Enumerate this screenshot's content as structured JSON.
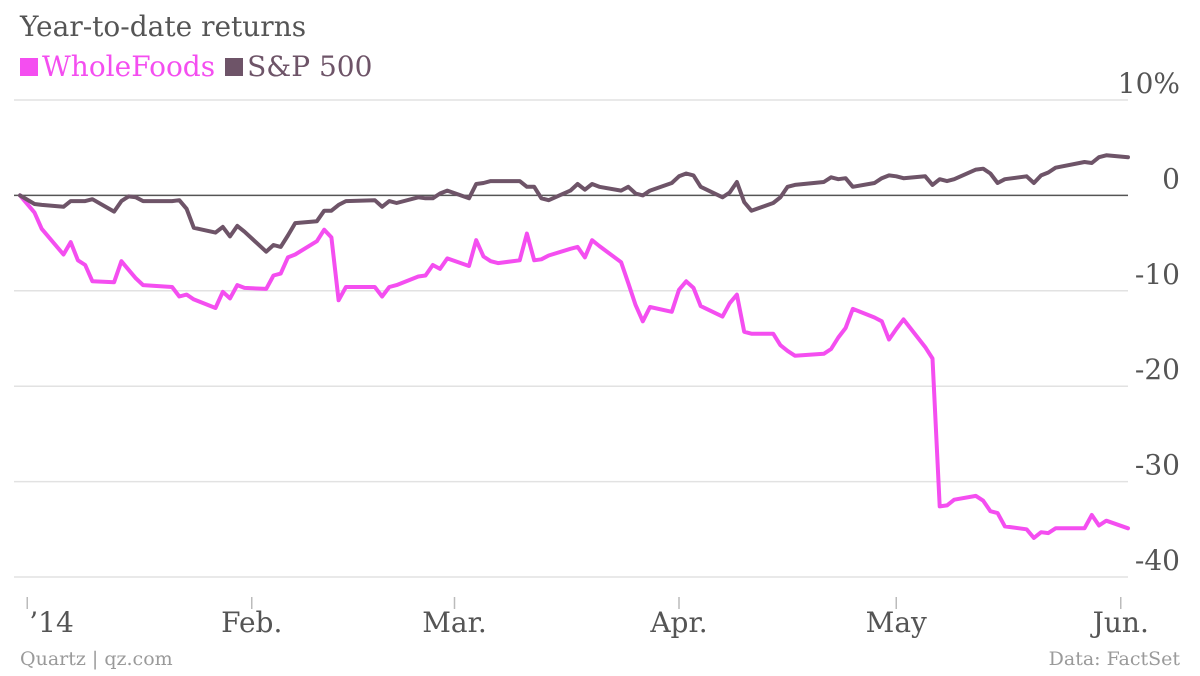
{
  "chart_data": {
    "type": "line",
    "title": "Year-to-date returns",
    "xlabel": "",
    "ylabel": "",
    "ylim": [
      -40,
      10
    ],
    "yticks": [
      10,
      0,
      -10,
      -20,
      -30,
      -40
    ],
    "ytick_labels": [
      "10%",
      "0",
      "-10",
      "-20",
      "-30",
      "-40"
    ],
    "x_axis": {
      "start": "2013-12-31",
      "end": "2014-06-02",
      "ticks": [
        {
          "date": "2014-01-01",
          "label": "’14"
        },
        {
          "date": "2014-02-01",
          "label": "Feb."
        },
        {
          "date": "2014-03-01",
          "label": "Mar."
        },
        {
          "date": "2014-04-01",
          "label": "Apr."
        },
        {
          "date": "2014-05-01",
          "label": "May"
        },
        {
          "date": "2014-06-01",
          "label": "Jun."
        }
      ]
    },
    "legend_position": "top-left",
    "grid": true,
    "series": [
      {
        "name": "WholeFoods",
        "color": "#f44ef0",
        "points": [
          [
            "2013-12-31",
            0.0
          ],
          [
            "2014-01-02",
            -1.8
          ],
          [
            "2014-01-03",
            -3.5
          ],
          [
            "2014-01-06",
            -6.2
          ],
          [
            "2014-01-07",
            -4.9
          ],
          [
            "2014-01-08",
            -6.8
          ],
          [
            "2014-01-09",
            -7.3
          ],
          [
            "2014-01-10",
            -9.0
          ],
          [
            "2014-01-13",
            -9.1
          ],
          [
            "2014-01-14",
            -6.9
          ],
          [
            "2014-01-15",
            -7.8
          ],
          [
            "2014-01-16",
            -8.7
          ],
          [
            "2014-01-17",
            -9.4
          ],
          [
            "2014-01-21",
            -9.6
          ],
          [
            "2014-01-22",
            -10.6
          ],
          [
            "2014-01-23",
            -10.4
          ],
          [
            "2014-01-24",
            -10.9
          ],
          [
            "2014-01-27",
            -11.8
          ],
          [
            "2014-01-28",
            -10.1
          ],
          [
            "2014-01-29",
            -10.8
          ],
          [
            "2014-01-30",
            -9.4
          ],
          [
            "2014-01-31",
            -9.7
          ],
          [
            "2014-02-03",
            -9.8
          ],
          [
            "2014-02-04",
            -8.4
          ],
          [
            "2014-02-05",
            -8.2
          ],
          [
            "2014-02-06",
            -6.5
          ],
          [
            "2014-02-07",
            -6.2
          ],
          [
            "2014-02-10",
            -4.8
          ],
          [
            "2014-02-11",
            -3.6
          ],
          [
            "2014-02-12",
            -4.4
          ],
          [
            "2014-02-13",
            -11.0
          ],
          [
            "2014-02-14",
            -9.6
          ],
          [
            "2014-02-18",
            -9.6
          ],
          [
            "2014-02-19",
            -10.6
          ],
          [
            "2014-02-20",
            -9.6
          ],
          [
            "2014-02-21",
            -9.4
          ],
          [
            "2014-02-24",
            -8.5
          ],
          [
            "2014-02-25",
            -8.4
          ],
          [
            "2014-02-26",
            -7.3
          ],
          [
            "2014-02-27",
            -7.7
          ],
          [
            "2014-02-28",
            -6.6
          ],
          [
            "2014-03-03",
            -7.4
          ],
          [
            "2014-03-04",
            -4.7
          ],
          [
            "2014-03-05",
            -6.4
          ],
          [
            "2014-03-06",
            -6.9
          ],
          [
            "2014-03-07",
            -7.1
          ],
          [
            "2014-03-10",
            -6.8
          ],
          [
            "2014-03-11",
            -4.0
          ],
          [
            "2014-03-12",
            -6.8
          ],
          [
            "2014-03-13",
            -6.7
          ],
          [
            "2014-03-14",
            -6.3
          ],
          [
            "2014-03-17",
            -5.6
          ],
          [
            "2014-03-18",
            -5.4
          ],
          [
            "2014-03-19",
            -6.5
          ],
          [
            "2014-03-20",
            -4.7
          ],
          [
            "2014-03-21",
            -5.3
          ],
          [
            "2014-03-24",
            -7.0
          ],
          [
            "2014-03-25",
            -9.2
          ],
          [
            "2014-03-26",
            -11.5
          ],
          [
            "2014-03-27",
            -13.2
          ],
          [
            "2014-03-28",
            -11.7
          ],
          [
            "2014-03-31",
            -12.2
          ],
          [
            "2014-04-01",
            -9.9
          ],
          [
            "2014-04-02",
            -9.0
          ],
          [
            "2014-04-03",
            -9.7
          ],
          [
            "2014-04-04",
            -11.6
          ],
          [
            "2014-04-07",
            -12.7
          ],
          [
            "2014-04-08",
            -11.3
          ],
          [
            "2014-04-09",
            -10.4
          ],
          [
            "2014-04-10",
            -14.3
          ],
          [
            "2014-04-11",
            -14.5
          ],
          [
            "2014-04-14",
            -14.5
          ],
          [
            "2014-04-15",
            -15.7
          ],
          [
            "2014-04-16",
            -16.3
          ],
          [
            "2014-04-17",
            -16.8
          ],
          [
            "2014-04-21",
            -16.6
          ],
          [
            "2014-04-22",
            -16.1
          ],
          [
            "2014-04-23",
            -14.9
          ],
          [
            "2014-04-24",
            -13.9
          ],
          [
            "2014-04-25",
            -11.9
          ],
          [
            "2014-04-28",
            -12.8
          ],
          [
            "2014-04-29",
            -13.2
          ],
          [
            "2014-04-30",
            -15.1
          ],
          [
            "2014-05-01",
            -14.0
          ],
          [
            "2014-05-02",
            -13.0
          ],
          [
            "2014-05-05",
            -15.9
          ],
          [
            "2014-05-06",
            -17.1
          ],
          [
            "2014-05-07",
            -32.6
          ],
          [
            "2014-05-08",
            -32.5
          ],
          [
            "2014-05-09",
            -31.9
          ],
          [
            "2014-05-12",
            -31.5
          ],
          [
            "2014-05-13",
            -32.0
          ],
          [
            "2014-05-14",
            -33.1
          ],
          [
            "2014-05-15",
            -33.3
          ],
          [
            "2014-05-16",
            -34.7
          ],
          [
            "2014-05-19",
            -35.0
          ],
          [
            "2014-05-20",
            -35.9
          ],
          [
            "2014-05-21",
            -35.3
          ],
          [
            "2014-05-22",
            -35.4
          ],
          [
            "2014-05-23",
            -34.9
          ],
          [
            "2014-05-27",
            -34.9
          ],
          [
            "2014-05-28",
            -33.5
          ],
          [
            "2014-05-29",
            -34.6
          ],
          [
            "2014-05-30",
            -34.1
          ],
          [
            "2014-06-02",
            -34.9
          ]
        ]
      },
      {
        "name": "S&P 500",
        "color": "#6e5468",
        "points": [
          [
            "2013-12-31",
            0.0
          ],
          [
            "2014-01-02",
            -0.9
          ],
          [
            "2014-01-03",
            -1.0
          ],
          [
            "2014-01-06",
            -1.2
          ],
          [
            "2014-01-07",
            -0.6
          ],
          [
            "2014-01-08",
            -0.6
          ],
          [
            "2014-01-09",
            -0.6
          ],
          [
            "2014-01-10",
            -0.4
          ],
          [
            "2014-01-13",
            -1.7
          ],
          [
            "2014-01-14",
            -0.6
          ],
          [
            "2014-01-15",
            -0.1
          ],
          [
            "2014-01-16",
            -0.2
          ],
          [
            "2014-01-17",
            -0.6
          ],
          [
            "2014-01-21",
            -0.6
          ],
          [
            "2014-01-22",
            -0.5
          ],
          [
            "2014-01-23",
            -1.4
          ],
          [
            "2014-01-24",
            -3.4
          ],
          [
            "2014-01-27",
            -3.9
          ],
          [
            "2014-01-28",
            -3.3
          ],
          [
            "2014-01-29",
            -4.3
          ],
          [
            "2014-01-30",
            -3.2
          ],
          [
            "2014-01-31",
            -3.8
          ],
          [
            "2014-02-03",
            -5.9
          ],
          [
            "2014-02-04",
            -5.2
          ],
          [
            "2014-02-05",
            -5.4
          ],
          [
            "2014-02-06",
            -4.2
          ],
          [
            "2014-02-07",
            -2.9
          ],
          [
            "2014-02-10",
            -2.7
          ],
          [
            "2014-02-11",
            -1.6
          ],
          [
            "2014-02-12",
            -1.6
          ],
          [
            "2014-02-13",
            -1.0
          ],
          [
            "2014-02-14",
            -0.6
          ],
          [
            "2014-02-18",
            -0.5
          ],
          [
            "2014-02-19",
            -1.2
          ],
          [
            "2014-02-20",
            -0.6
          ],
          [
            "2014-02-21",
            -0.8
          ],
          [
            "2014-02-24",
            -0.2
          ],
          [
            "2014-02-25",
            -0.3
          ],
          [
            "2014-02-26",
            -0.3
          ],
          [
            "2014-02-27",
            0.2
          ],
          [
            "2014-02-28",
            0.5
          ],
          [
            "2014-03-03",
            -0.3
          ],
          [
            "2014-03-04",
            1.2
          ],
          [
            "2014-03-05",
            1.3
          ],
          [
            "2014-03-06",
            1.5
          ],
          [
            "2014-03-07",
            1.5
          ],
          [
            "2014-03-10",
            1.5
          ],
          [
            "2014-03-11",
            0.9
          ],
          [
            "2014-03-12",
            0.9
          ],
          [
            "2014-03-13",
            -0.3
          ],
          [
            "2014-03-14",
            -0.5
          ],
          [
            "2014-03-17",
            0.5
          ],
          [
            "2014-03-18",
            1.2
          ],
          [
            "2014-03-19",
            0.6
          ],
          [
            "2014-03-20",
            1.2
          ],
          [
            "2014-03-21",
            0.9
          ],
          [
            "2014-03-24",
            0.5
          ],
          [
            "2014-03-25",
            0.9
          ],
          [
            "2014-03-26",
            0.2
          ],
          [
            "2014-03-27",
            0.0
          ],
          [
            "2014-03-28",
            0.5
          ],
          [
            "2014-03-31",
            1.3
          ],
          [
            "2014-04-01",
            2.0
          ],
          [
            "2014-04-02",
            2.3
          ],
          [
            "2014-04-03",
            2.1
          ],
          [
            "2014-04-04",
            0.9
          ],
          [
            "2014-04-07",
            -0.2
          ],
          [
            "2014-04-08",
            0.3
          ],
          [
            "2014-04-09",
            1.4
          ],
          [
            "2014-04-10",
            -0.7
          ],
          [
            "2014-04-11",
            -1.6
          ],
          [
            "2014-04-14",
            -0.8
          ],
          [
            "2014-04-15",
            -0.2
          ],
          [
            "2014-04-16",
            0.9
          ],
          [
            "2014-04-17",
            1.1
          ],
          [
            "2014-04-21",
            1.4
          ],
          [
            "2014-04-22",
            1.9
          ],
          [
            "2014-04-23",
            1.7
          ],
          [
            "2014-04-24",
            1.8
          ],
          [
            "2014-04-25",
            0.9
          ],
          [
            "2014-04-28",
            1.3
          ],
          [
            "2014-04-29",
            1.8
          ],
          [
            "2014-04-30",
            2.1
          ],
          [
            "2014-05-01",
            2.0
          ],
          [
            "2014-05-02",
            1.8
          ],
          [
            "2014-05-05",
            2.0
          ],
          [
            "2014-05-06",
            1.1
          ],
          [
            "2014-05-07",
            1.7
          ],
          [
            "2014-05-08",
            1.5
          ],
          [
            "2014-05-09",
            1.7
          ],
          [
            "2014-05-12",
            2.7
          ],
          [
            "2014-05-13",
            2.8
          ],
          [
            "2014-05-14",
            2.3
          ],
          [
            "2014-05-15",
            1.3
          ],
          [
            "2014-05-16",
            1.7
          ],
          [
            "2014-05-19",
            2.0
          ],
          [
            "2014-05-20",
            1.3
          ],
          [
            "2014-05-21",
            2.1
          ],
          [
            "2014-05-22",
            2.4
          ],
          [
            "2014-05-23",
            2.9
          ],
          [
            "2014-05-27",
            3.5
          ],
          [
            "2014-05-28",
            3.4
          ],
          [
            "2014-05-29",
            4.0
          ],
          [
            "2014-05-30",
            4.2
          ],
          [
            "2014-06-02",
            4.0
          ]
        ]
      }
    ]
  },
  "footer": {
    "source_left": "Quartz | qz.com",
    "source_right": "Data: FactSet"
  },
  "colors": {
    "wholefoods": "#f44ef0",
    "sp500": "#6e5468",
    "grid": "#e2e2e2",
    "zero_line": "#555555",
    "text": "#555555",
    "footer_text": "#9a9a9a"
  }
}
